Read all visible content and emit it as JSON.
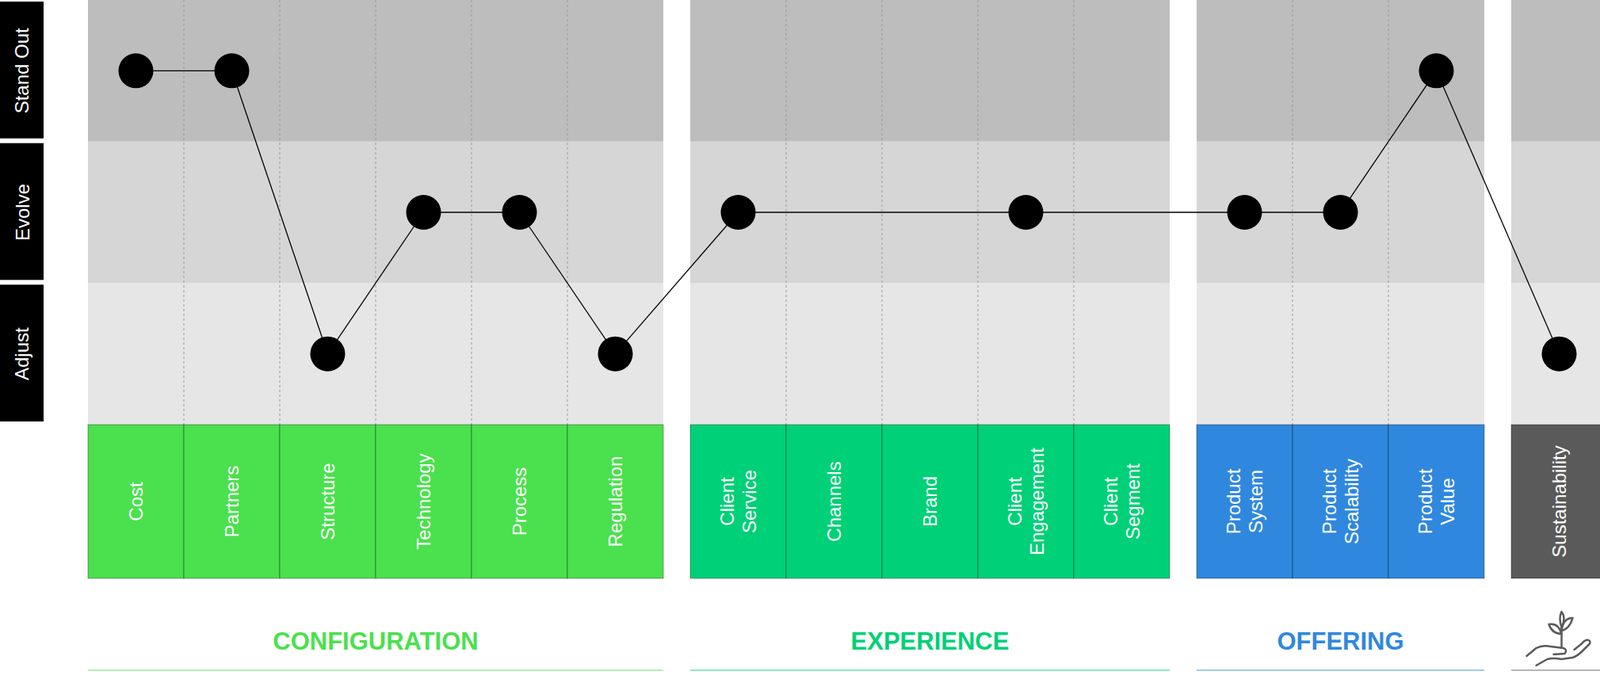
{
  "chart_data": {
    "type": "line",
    "categories": [
      "Cost",
      "Partners",
      "Structure",
      "Technology",
      "Process",
      "Regulation",
      "Client Service",
      "Channels",
      "Brand",
      "Client Engagement",
      "Client Segment",
      "Product System",
      "Product Scalability",
      "Product Value",
      "Sustainability"
    ],
    "values": [
      3,
      3,
      1,
      2,
      2,
      1,
      2,
      null,
      null,
      2,
      null,
      2,
      2,
      3,
      1
    ],
    "ylim": [
      0.5,
      3.5
    ],
    "yticks": [
      {
        "value": 1,
        "label": "Adjust"
      },
      {
        "value": 2,
        "label": "Evolve"
      },
      {
        "value": 3,
        "label": "Stand Out"
      }
    ],
    "color": "#000000",
    "marker": "circle",
    "groups": [
      {
        "name": "CONFIGURATION",
        "color": "#4be04e",
        "categories": [
          "Cost",
          "Partners",
          "Structure",
          "Technology",
          "Process",
          "Regulation"
        ]
      },
      {
        "name": "EXPERIENCE",
        "color": "#00d077",
        "categories": [
          "Client Service",
          "Channels",
          "Brand",
          "Client Engagement",
          "Client Segment"
        ]
      },
      {
        "name": "OFFERING",
        "color": "#2f88dd",
        "categories": [
          "Product System",
          "Product Scalability",
          "Product Value"
        ]
      },
      {
        "name": null,
        "color": "#5a5a5a",
        "categories": [
          "Sustainability"
        ]
      }
    ]
  }
}
